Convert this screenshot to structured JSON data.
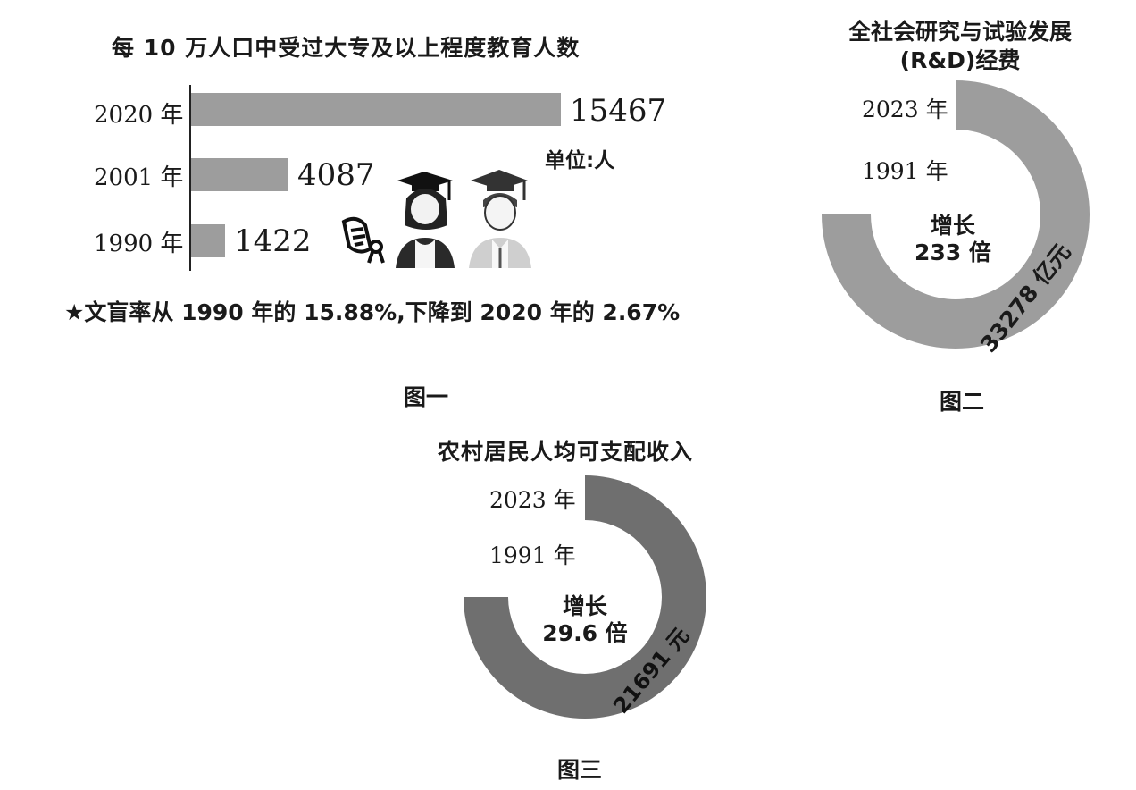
{
  "chart_data": [
    {
      "type": "bar",
      "orientation": "horizontal",
      "title": "每 10 万人口中受过大专及以上程度教育人数",
      "categories": [
        "2020 年",
        "2001 年",
        "1990 年"
      ],
      "values": [
        15467,
        4087,
        1422
      ],
      "value_labels": [
        "15467",
        "4087",
        "1422"
      ],
      "unit_label": "单位:人",
      "note": "★文盲率从 1990 年的 15.88%,下降到 2020 年的 2.67%",
      "caption": "图一",
      "color": "#9d9d9d"
    },
    {
      "type": "pie",
      "style": "donut",
      "title_lines": [
        "全社会研究与试验发展",
        "(R&D)经费"
      ],
      "labels": [
        "2023 年",
        "1991 年"
      ],
      "center_lines": [
        "增长",
        "233 倍"
      ],
      "value_label": "33278 亿元",
      "value": 33278,
      "arc_fraction": 0.75,
      "caption": "图二",
      "color": "#9d9d9d"
    },
    {
      "type": "pie",
      "style": "donut",
      "title": "农村居民人均可支配收入",
      "labels": [
        "2023 年",
        "1991 年"
      ],
      "center_lines": [
        "增长",
        "29.6 倍"
      ],
      "value_label": "21691 元",
      "value": 21691,
      "arc_fraction": 0.75,
      "caption": "图三",
      "color": "#6f6f6f"
    }
  ]
}
